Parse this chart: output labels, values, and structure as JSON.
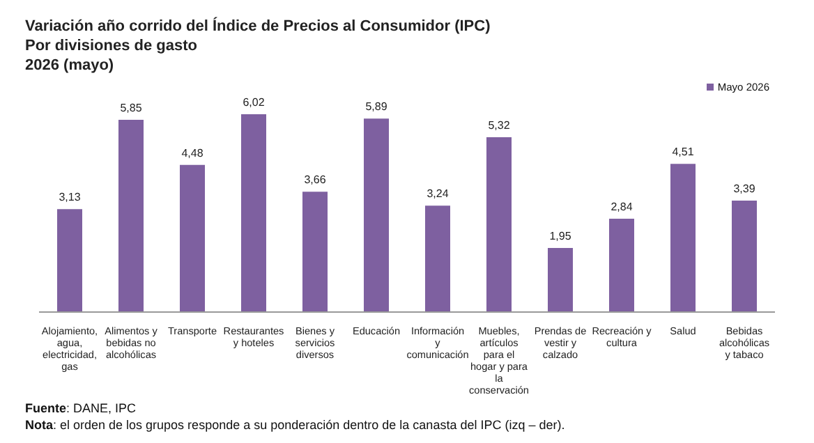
{
  "chart_data": {
    "type": "bar",
    "title": "Variación año corrido del Índice de Precios al Consumidor (IPC)",
    "subtitle": "Por divisiones de gasto\n2026 (mayo)",
    "categories": [
      "Alojamiento, agua, electricidad, gas",
      "Alimentos y bebidas no alcohólicas",
      "Transporte",
      "Restaurantes y hoteles",
      "Bienes y servicios diversos",
      "Educación",
      "Información y comunicación",
      "Muebles, artículos para el hogar y para la conservación",
      "Prendas de vestir y calzado",
      "Recreación y cultura",
      "Salud",
      "Bebidas alcohólicas y tabaco"
    ],
    "series": [
      {
        "name": "Mayo 2026",
        "color": "#7e60a0",
        "values": [
          3.13,
          5.85,
          4.48,
          6.02,
          3.66,
          5.89,
          3.24,
          5.32,
          1.95,
          2.84,
          4.51,
          3.39
        ],
        "value_labels": [
          "3,13",
          "5,85",
          "4,48",
          "6,02",
          "3,66",
          "5,89",
          "3,24",
          "5,32",
          "1,95",
          "2,84",
          "4,51",
          "3,39"
        ]
      }
    ],
    "legend": "top right",
    "grid": false,
    "annotations": [
      "Fuente: DANE, IPC",
      "Nota: el orden de los grupos responde a su ponderación dentro de la canasta del IPC (izq – der)."
    ]
  }
}
